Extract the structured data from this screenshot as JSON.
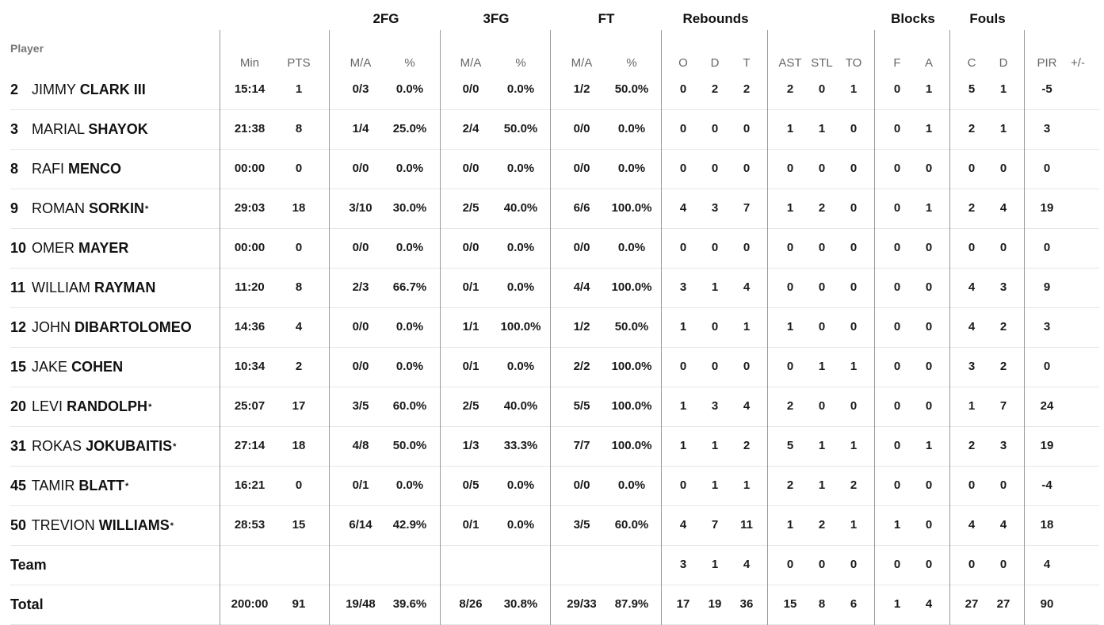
{
  "group_headers": {
    "fg2": "2FG",
    "fg3": "3FG",
    "ft": "FT",
    "rebounds": "Rebounds",
    "blocks": "Blocks",
    "fouls": "Fouls"
  },
  "column_headers": {
    "player": "Player",
    "min": "Min",
    "pts": "PTS",
    "fg2_ma": "M/A",
    "fg2_pct": "%",
    "fg3_ma": "M/A",
    "fg3_pct": "%",
    "ft_ma": "M/A",
    "ft_pct": "%",
    "reb_o": "O",
    "reb_d": "D",
    "reb_t": "T",
    "ast": "AST",
    "stl": "STL",
    "to": "TO",
    "blk_f": "F",
    "blk_a": "A",
    "foul_c": "C",
    "foul_d": "D",
    "pir": "PIR",
    "plusminus": "+/-"
  },
  "players": [
    {
      "number": "2",
      "first": "JIMMY",
      "last": "CLARK III",
      "star": "",
      "min": "15:14",
      "pts": "1",
      "fg2_ma": "0/3",
      "fg2_pct": "0.0%",
      "fg3_ma": "0/0",
      "fg3_pct": "0.0%",
      "ft_ma": "1/2",
      "ft_pct": "50.0%",
      "reb_o": "0",
      "reb_d": "2",
      "reb_t": "2",
      "ast": "2",
      "stl": "0",
      "to": "1",
      "blk_f": "0",
      "blk_a": "1",
      "foul_c": "5",
      "foul_d": "1",
      "pir": "-5",
      "plusminus": ""
    },
    {
      "number": "3",
      "first": "MARIAL",
      "last": "SHAYOK",
      "star": "",
      "min": "21:38",
      "pts": "8",
      "fg2_ma": "1/4",
      "fg2_pct": "25.0%",
      "fg3_ma": "2/4",
      "fg3_pct": "50.0%",
      "ft_ma": "0/0",
      "ft_pct": "0.0%",
      "reb_o": "0",
      "reb_d": "0",
      "reb_t": "0",
      "ast": "1",
      "stl": "1",
      "to": "0",
      "blk_f": "0",
      "blk_a": "1",
      "foul_c": "2",
      "foul_d": "1",
      "pir": "3",
      "plusminus": ""
    },
    {
      "number": "8",
      "first": "RAFI",
      "last": "MENCO",
      "star": "",
      "min": "00:00",
      "pts": "0",
      "fg2_ma": "0/0",
      "fg2_pct": "0.0%",
      "fg3_ma": "0/0",
      "fg3_pct": "0.0%",
      "ft_ma": "0/0",
      "ft_pct": "0.0%",
      "reb_o": "0",
      "reb_d": "0",
      "reb_t": "0",
      "ast": "0",
      "stl": "0",
      "to": "0",
      "blk_f": "0",
      "blk_a": "0",
      "foul_c": "0",
      "foul_d": "0",
      "pir": "0",
      "plusminus": ""
    },
    {
      "number": "9",
      "first": "ROMAN",
      "last": "SORKIN",
      "star": "*",
      "min": "29:03",
      "pts": "18",
      "fg2_ma": "3/10",
      "fg2_pct": "30.0%",
      "fg3_ma": "2/5",
      "fg3_pct": "40.0%",
      "ft_ma": "6/6",
      "ft_pct": "100.0%",
      "reb_o": "4",
      "reb_d": "3",
      "reb_t": "7",
      "ast": "1",
      "stl": "2",
      "to": "0",
      "blk_f": "0",
      "blk_a": "1",
      "foul_c": "2",
      "foul_d": "4",
      "pir": "19",
      "plusminus": ""
    },
    {
      "number": "10",
      "first": "OMER",
      "last": "MAYER",
      "star": "",
      "min": "00:00",
      "pts": "0",
      "fg2_ma": "0/0",
      "fg2_pct": "0.0%",
      "fg3_ma": "0/0",
      "fg3_pct": "0.0%",
      "ft_ma": "0/0",
      "ft_pct": "0.0%",
      "reb_o": "0",
      "reb_d": "0",
      "reb_t": "0",
      "ast": "0",
      "stl": "0",
      "to": "0",
      "blk_f": "0",
      "blk_a": "0",
      "foul_c": "0",
      "foul_d": "0",
      "pir": "0",
      "plusminus": ""
    },
    {
      "number": "11",
      "first": "WILLIAM",
      "last": "RAYMAN",
      "star": "",
      "min": "11:20",
      "pts": "8",
      "fg2_ma": "2/3",
      "fg2_pct": "66.7%",
      "fg3_ma": "0/1",
      "fg3_pct": "0.0%",
      "ft_ma": "4/4",
      "ft_pct": "100.0%",
      "reb_o": "3",
      "reb_d": "1",
      "reb_t": "4",
      "ast": "0",
      "stl": "0",
      "to": "0",
      "blk_f": "0",
      "blk_a": "0",
      "foul_c": "4",
      "foul_d": "3",
      "pir": "9",
      "plusminus": ""
    },
    {
      "number": "12",
      "first": "JOHN",
      "last": "DIBARTOLOMEO",
      "star": "",
      "min": "14:36",
      "pts": "4",
      "fg2_ma": "0/0",
      "fg2_pct": "0.0%",
      "fg3_ma": "1/1",
      "fg3_pct": "100.0%",
      "ft_ma": "1/2",
      "ft_pct": "50.0%",
      "reb_o": "1",
      "reb_d": "0",
      "reb_t": "1",
      "ast": "1",
      "stl": "0",
      "to": "0",
      "blk_f": "0",
      "blk_a": "0",
      "foul_c": "4",
      "foul_d": "2",
      "pir": "3",
      "plusminus": ""
    },
    {
      "number": "15",
      "first": "JAKE",
      "last": "COHEN",
      "star": "",
      "min": "10:34",
      "pts": "2",
      "fg2_ma": "0/0",
      "fg2_pct": "0.0%",
      "fg3_ma": "0/1",
      "fg3_pct": "0.0%",
      "ft_ma": "2/2",
      "ft_pct": "100.0%",
      "reb_o": "0",
      "reb_d": "0",
      "reb_t": "0",
      "ast": "0",
      "stl": "1",
      "to": "1",
      "blk_f": "0",
      "blk_a": "0",
      "foul_c": "3",
      "foul_d": "2",
      "pir": "0",
      "plusminus": ""
    },
    {
      "number": "20",
      "first": "LEVI",
      "last": "RANDOLPH",
      "star": "*",
      "min": "25:07",
      "pts": "17",
      "fg2_ma": "3/5",
      "fg2_pct": "60.0%",
      "fg3_ma": "2/5",
      "fg3_pct": "40.0%",
      "ft_ma": "5/5",
      "ft_pct": "100.0%",
      "reb_o": "1",
      "reb_d": "3",
      "reb_t": "4",
      "ast": "2",
      "stl": "0",
      "to": "0",
      "blk_f": "0",
      "blk_a": "0",
      "foul_c": "1",
      "foul_d": "7",
      "pir": "24",
      "plusminus": ""
    },
    {
      "number": "31",
      "first": "ROKAS",
      "last": "JOKUBAITIS",
      "star": "*",
      "min": "27:14",
      "pts": "18",
      "fg2_ma": "4/8",
      "fg2_pct": "50.0%",
      "fg3_ma": "1/3",
      "fg3_pct": "33.3%",
      "ft_ma": "7/7",
      "ft_pct": "100.0%",
      "reb_o": "1",
      "reb_d": "1",
      "reb_t": "2",
      "ast": "5",
      "stl": "1",
      "to": "1",
      "blk_f": "0",
      "blk_a": "1",
      "foul_c": "2",
      "foul_d": "3",
      "pir": "19",
      "plusminus": ""
    },
    {
      "number": "45",
      "first": "TAMIR",
      "last": "BLATT",
      "star": "*",
      "min": "16:21",
      "pts": "0",
      "fg2_ma": "0/1",
      "fg2_pct": "0.0%",
      "fg3_ma": "0/5",
      "fg3_pct": "0.0%",
      "ft_ma": "0/0",
      "ft_pct": "0.0%",
      "reb_o": "0",
      "reb_d": "1",
      "reb_t": "1",
      "ast": "2",
      "stl": "1",
      "to": "2",
      "blk_f": "0",
      "blk_a": "0",
      "foul_c": "0",
      "foul_d": "0",
      "pir": "-4",
      "plusminus": ""
    },
    {
      "number": "50",
      "first": "TREVION",
      "last": "WILLIAMS",
      "star": "*",
      "min": "28:53",
      "pts": "15",
      "fg2_ma": "6/14",
      "fg2_pct": "42.9%",
      "fg3_ma": "0/1",
      "fg3_pct": "0.0%",
      "ft_ma": "3/5",
      "ft_pct": "60.0%",
      "reb_o": "4",
      "reb_d": "7",
      "reb_t": "11",
      "ast": "1",
      "stl": "2",
      "to": "1",
      "blk_f": "1",
      "blk_a": "0",
      "foul_c": "4",
      "foul_d": "4",
      "pir": "18",
      "plusminus": ""
    }
  ],
  "team": {
    "label": "Team",
    "min": "",
    "pts": "",
    "fg2_ma": "",
    "fg2_pct": "",
    "fg3_ma": "",
    "fg3_pct": "",
    "ft_ma": "",
    "ft_pct": "",
    "reb_o": "3",
    "reb_d": "1",
    "reb_t": "4",
    "ast": "0",
    "stl": "0",
    "to": "0",
    "blk_f": "0",
    "blk_a": "0",
    "foul_c": "0",
    "foul_d": "0",
    "pir": "4",
    "plusminus": ""
  },
  "total": {
    "label": "Total",
    "min": "200:00",
    "pts": "91",
    "fg2_ma": "19/48",
    "fg2_pct": "39.6%",
    "fg3_ma": "8/26",
    "fg3_pct": "30.8%",
    "ft_ma": "29/33",
    "ft_pct": "87.9%",
    "reb_o": "17",
    "reb_d": "19",
    "reb_t": "36",
    "ast": "15",
    "stl": "8",
    "to": "6",
    "blk_f": "1",
    "blk_a": "4",
    "foul_c": "27",
    "foul_d": "27",
    "pir": "90",
    "plusminus": ""
  }
}
